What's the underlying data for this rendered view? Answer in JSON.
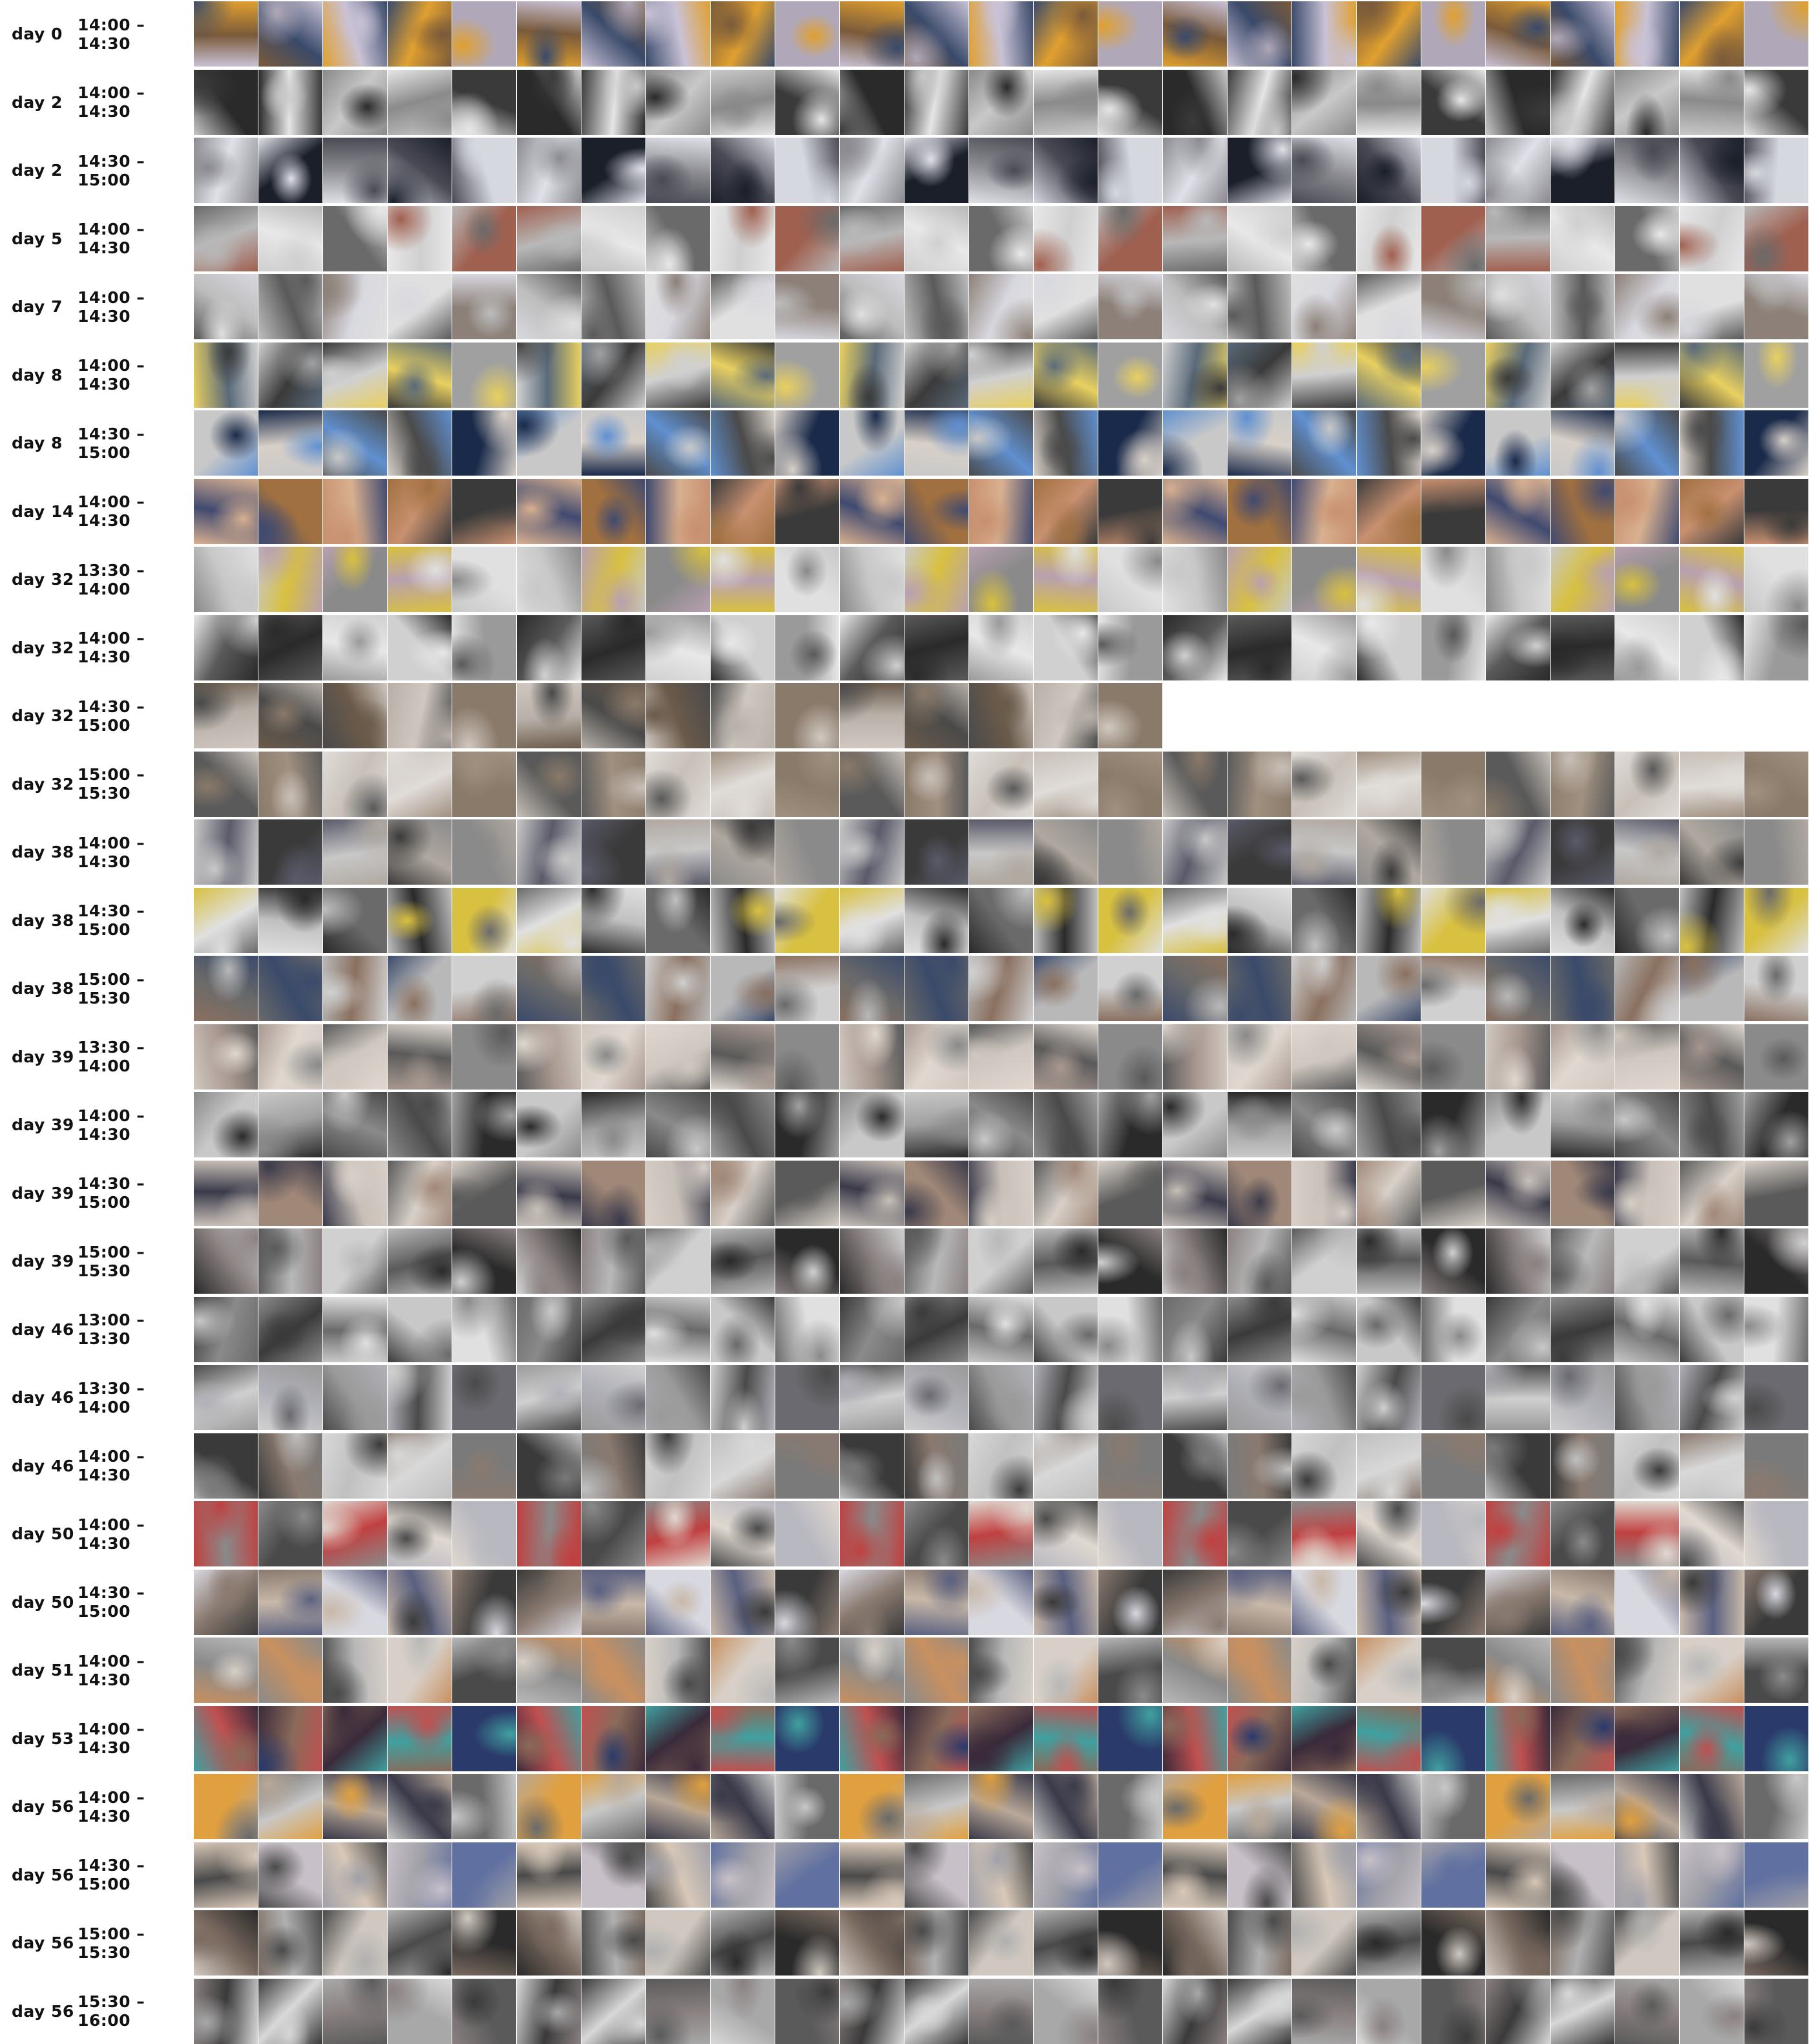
{
  "rows": [
    {
      "day": "day 0",
      "range": "14:00 – 14:30",
      "count": 25,
      "palette": [
        "#c9c2d6",
        "#7a5a3a",
        "#e0a030",
        "#3a4a6a",
        "#b0a8b8"
      ]
    },
    {
      "day": "day 2",
      "range": "14:00 – 14:30",
      "count": 25,
      "palette": [
        "#3a3a3a",
        "#c8c8c8",
        "#2a2a2a",
        "#8a8a8a",
        "#e6e6e6"
      ]
    },
    {
      "day": "day 2",
      "range": "14:30 – 15:00",
      "count": 25,
      "palette": [
        "#1a1f2a",
        "#d6d8e0",
        "#8a8a90",
        "#e0e0e8",
        "#4a4a55"
      ]
    },
    {
      "day": "day 5",
      "range": "14:00 – 14:30",
      "count": 25,
      "palette": [
        "#cfcfcf",
        "#e8e8e8",
        "#a06050",
        "#6a6a6a",
        "#b8b8b8"
      ]
    },
    {
      "day": "day 7",
      "range": "14:00 – 14:30",
      "count": 25,
      "palette": [
        "#bdbdbd",
        "#e0e0e0",
        "#5a5a5a",
        "#8c8078",
        "#d8d8e0"
      ]
    },
    {
      "day": "day 8",
      "range": "14:00 – 14:30",
      "count": 25,
      "palette": [
        "#d0d0d0",
        "#5a6a7a",
        "#e8d060",
        "#3a3a3a",
        "#a0a0a0"
      ]
    },
    {
      "day": "day 8",
      "range": "14:30 – 15:00",
      "count": 25,
      "palette": [
        "#1a2a4a",
        "#6090d0",
        "#c8c8c8",
        "#4a4a4a",
        "#d8d0c8"
      ]
    },
    {
      "day": "day 14",
      "range": "14:00 – 14:30",
      "count": 25,
      "palette": [
        "#a07040",
        "#3a3a3a",
        "#d8b090",
        "#404a70",
        "#c89070"
      ]
    },
    {
      "day": "day 32",
      "range": "13:30 – 14:00",
      "count": 25,
      "palette": [
        "#b8a0b0",
        "#d8c040",
        "#e0e0e0",
        "#8a8a8a",
        "#c8c8c8"
      ]
    },
    {
      "day": "day 32",
      "range": "14:00 – 14:30",
      "count": 25,
      "palette": [
        "#5a5a5a",
        "#d0d0d0",
        "#2a2a2a",
        "#9a9a9a",
        "#e8e8e8"
      ]
    },
    {
      "day": "day 32",
      "range": "14:30 – 15:00",
      "count": 15,
      "palette": [
        "#6a5a4a",
        "#b8b0a8",
        "#d0c8c0",
        "#4a4a4a",
        "#8a7a6a"
      ]
    },
    {
      "day": "day 32",
      "range": "15:00 – 15:30",
      "count": 25,
      "palette": [
        "#8a7a6a",
        "#c8c0b8",
        "#5a5a5a",
        "#e0dcd8",
        "#a09080"
      ]
    },
    {
      "day": "day 38",
      "range": "14:00 – 14:30",
      "count": 25,
      "palette": [
        "#3a3a3a",
        "#8a8a8a",
        "#c8c8c8",
        "#5a5a6a",
        "#b0a8a0"
      ]
    },
    {
      "day": "day 38",
      "range": "14:30 – 15:00",
      "count": 25,
      "palette": [
        "#2a2a2a",
        "#c0c0c0",
        "#d8c040",
        "#6a6a6a",
        "#e0e0e0"
      ]
    },
    {
      "day": "day 38",
      "range": "15:00 – 15:30",
      "count": 25,
      "palette": [
        "#6a6a6a",
        "#b8b8b8",
        "#3a4a6a",
        "#d0d0d0",
        "#8a7060"
      ]
    },
    {
      "day": "day 39",
      "range": "13:30 – 14:00",
      "count": 25,
      "palette": [
        "#d0c8c0",
        "#a89890",
        "#5a5a5a",
        "#e0d8d0",
        "#8a8a8a"
      ]
    },
    {
      "day": "day 39",
      "range": "14:00 – 14:30",
      "count": 25,
      "palette": [
        "#2a2a2a",
        "#8a8a8a",
        "#c8c8c8",
        "#4a4a4a",
        "#a0a0a0"
      ]
    },
    {
      "day": "day 39",
      "range": "14:30 – 15:00",
      "count": 25,
      "palette": [
        "#a08878",
        "#5a5a5a",
        "#c8c0b8",
        "#3a3a4a",
        "#d8d0c8"
      ]
    },
    {
      "day": "day 39",
      "range": "15:00 – 15:30",
      "count": 25,
      "palette": [
        "#5a5a5a",
        "#b8b8b8",
        "#2a2a2a",
        "#d0d0d0",
        "#8a8080"
      ]
    },
    {
      "day": "day 46",
      "range": "13:00 – 13:30",
      "count": 25,
      "palette": [
        "#8a8a8a",
        "#c8c8c8",
        "#3a3a3a",
        "#e0e0e0",
        "#6a6a6a"
      ]
    },
    {
      "day": "day 46",
      "range": "13:30 – 14:00",
      "count": 25,
      "palette": [
        "#9a9a9a",
        "#d0d0d0",
        "#4a4a4a",
        "#b0b0b8",
        "#6a6a70"
      ]
    },
    {
      "day": "day 46",
      "range": "14:00 – 14:30",
      "count": 25,
      "palette": [
        "#7a7a7a",
        "#c0c0c0",
        "#3a3a3a",
        "#d8d8d8",
        "#8a7a70"
      ]
    },
    {
      "day": "day 50",
      "range": "14:00 – 14:30",
      "count": 25,
      "palette": [
        "#4a4a4a",
        "#b8b8c0",
        "#c04040",
        "#8a8a8a",
        "#e0d8d0"
      ]
    },
    {
      "day": "day 50",
      "range": "14:30 – 15:00",
      "count": 25,
      "palette": [
        "#5a6080",
        "#c8b8a8",
        "#3a3a3a",
        "#d8d8e0",
        "#8a7a70"
      ]
    },
    {
      "day": "day 51",
      "range": "14:00 – 14:30",
      "count": 25,
      "palette": [
        "#8a8a8a",
        "#d8d0c8",
        "#c89060",
        "#4a4a4a",
        "#b8b8b8"
      ]
    },
    {
      "day": "day 53",
      "range": "14:00 – 14:30",
      "count": 25,
      "palette": [
        "#3a2a3a",
        "#c05050",
        "#40a0a0",
        "#8a6a5a",
        "#2a3a6a"
      ]
    },
    {
      "day": "day 56",
      "range": "14:00 – 14:30",
      "count": 25,
      "palette": [
        "#6a6a6a",
        "#b8a898",
        "#e0a040",
        "#3a3a4a",
        "#c8c8c8"
      ]
    },
    {
      "day": "day 56",
      "range": "14:30 – 15:00",
      "count": 25,
      "palette": [
        "#c8c0c8",
        "#6070a0",
        "#d8c8b8",
        "#4a4a4a",
        "#a0a0a8"
      ]
    },
    {
      "day": "day 56",
      "range": "15:00 – 15:30",
      "count": 25,
      "palette": [
        "#4a4a4a",
        "#b0b0b0",
        "#2a2a2a",
        "#d0c8c0",
        "#7a6a60"
      ]
    },
    {
      "day": "day 56",
      "range": "15:30 – 16:00",
      "count": 25,
      "palette": [
        "#3a3a3a",
        "#a8a8a8",
        "#d8d8d8",
        "#5a5a5a",
        "#8a8080"
      ]
    }
  ]
}
